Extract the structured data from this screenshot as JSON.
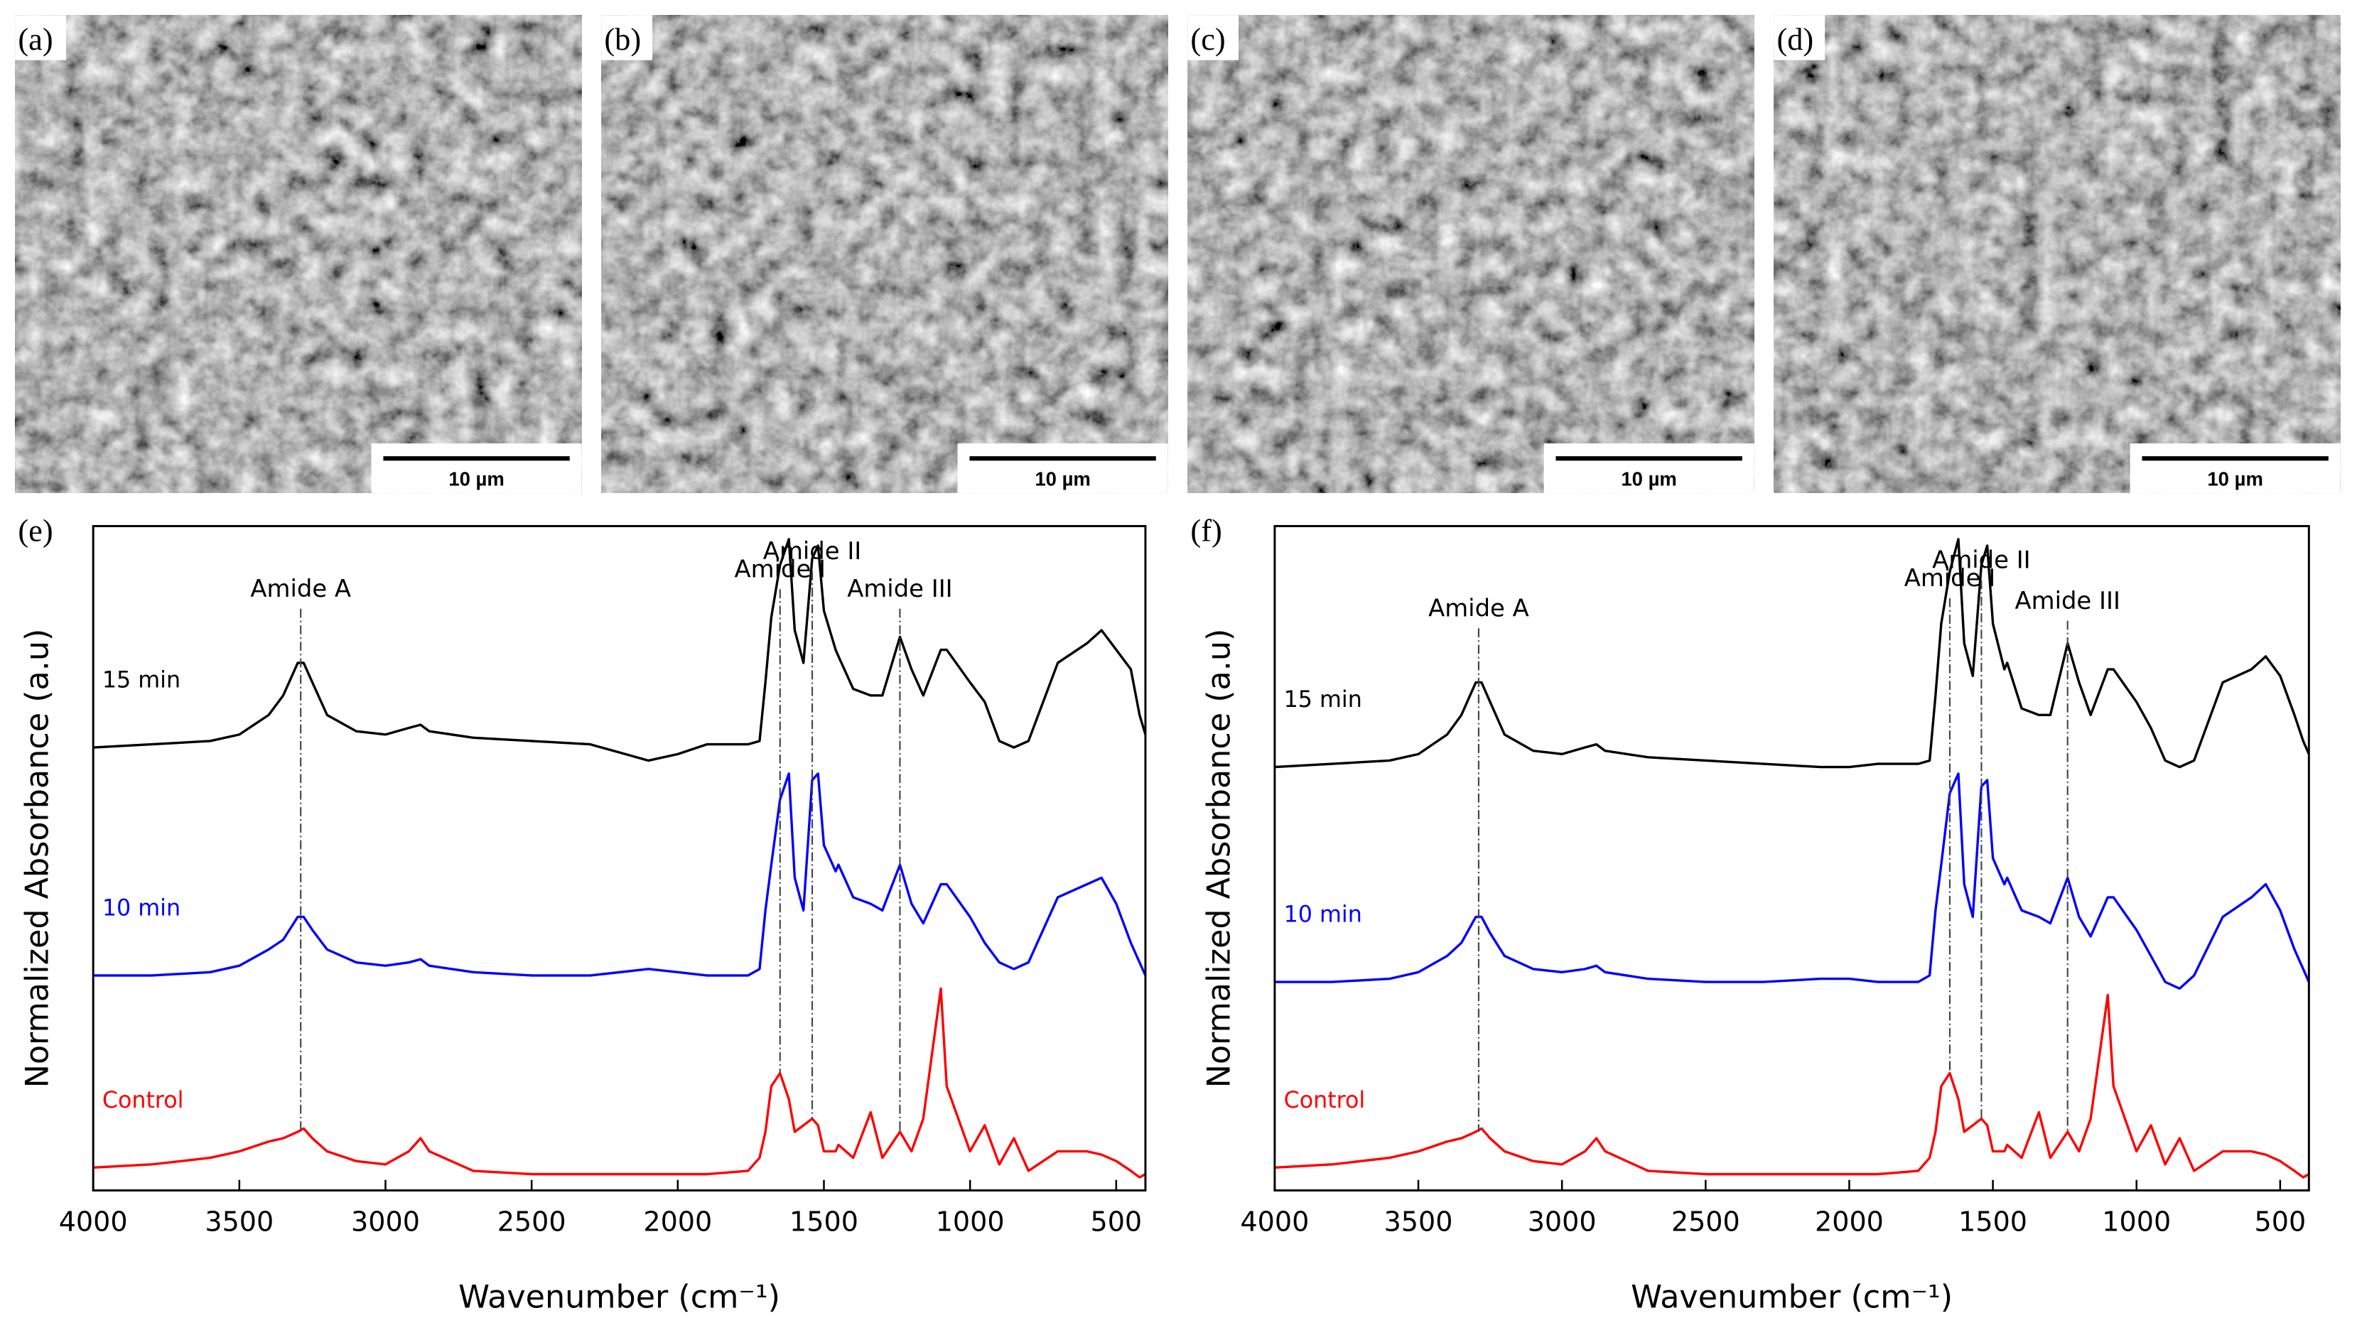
{
  "panels": [
    {
      "label": "(a)",
      "scale_bar": "10 µm"
    },
    {
      "label": "(b)",
      "scale_bar": "10 µm"
    },
    {
      "label": "(c)",
      "scale_bar": "10 µm"
    },
    {
      "label": "(d)",
      "scale_bar": "10 µm"
    }
  ],
  "chart_data": [
    {
      "type": "line",
      "panel_label": "(e)",
      "xlabel": "Wavenumber (cm⁻¹)",
      "ylabel": "Normalized Absorbance (a.u)",
      "xlim": [
        4000,
        400
      ],
      "xticks": [
        4000,
        3500,
        3000,
        2500,
        2000,
        1500,
        1000,
        500
      ],
      "ylim": [
        0,
        10.2
      ],
      "annotations": [
        {
          "text": "Amide A",
          "x": 3290
        },
        {
          "text": "Amide I",
          "x": 1650
        },
        {
          "text": "Amide II",
          "x": 1540
        },
        {
          "text": "Amide III",
          "x": 1240
        }
      ],
      "x": [
        4000,
        3800,
        3600,
        3500,
        3400,
        3350,
        3300,
        3280,
        3250,
        3200,
        3100,
        3000,
        2920,
        2880,
        2850,
        2700,
        2500,
        2300,
        2100,
        2000,
        1900,
        1760,
        1720,
        1700,
        1680,
        1650,
        1620,
        1600,
        1570,
        1540,
        1520,
        1500,
        1460,
        1450,
        1400,
        1340,
        1300,
        1240,
        1200,
        1160,
        1100,
        1080,
        1000,
        950,
        900,
        850,
        800,
        700,
        600,
        550,
        500,
        450,
        420,
        400
      ],
      "series": [
        {
          "name": "15 min",
          "color": "#000000",
          "values": [
            6.8,
            6.85,
            6.9,
            7.0,
            7.3,
            7.6,
            8.1,
            8.1,
            7.8,
            7.3,
            7.05,
            7.0,
            7.1,
            7.15,
            7.05,
            6.95,
            6.9,
            6.85,
            6.6,
            6.7,
            6.85,
            6.85,
            6.9,
            7.8,
            8.8,
            9.6,
            10.0,
            8.6,
            8.1,
            9.7,
            9.9,
            8.9,
            8.3,
            8.2,
            7.7,
            7.6,
            7.6,
            8.5,
            8.0,
            7.6,
            8.3,
            8.3,
            7.8,
            7.5,
            6.9,
            6.8,
            6.9,
            8.1,
            8.4,
            8.6,
            8.3,
            8.0,
            7.3,
            7.0
          ]
        },
        {
          "name": "10 min",
          "color": "#0000ff",
          "values": [
            3.3,
            3.3,
            3.35,
            3.45,
            3.7,
            3.85,
            4.2,
            4.2,
            4.0,
            3.7,
            3.5,
            3.45,
            3.5,
            3.55,
            3.45,
            3.35,
            3.3,
            3.3,
            3.4,
            3.35,
            3.3,
            3.3,
            3.4,
            4.3,
            5.0,
            6.0,
            6.4,
            4.8,
            4.3,
            6.3,
            6.4,
            5.3,
            4.9,
            5.0,
            4.5,
            4.4,
            4.3,
            5.0,
            4.4,
            4.1,
            4.7,
            4.7,
            4.2,
            3.8,
            3.5,
            3.4,
            3.5,
            4.5,
            4.7,
            4.8,
            4.4,
            3.8,
            3.5,
            3.3
          ]
        },
        {
          "name": "Control",
          "color": "#ff0000",
          "values": [
            0.35,
            0.4,
            0.5,
            0.6,
            0.75,
            0.8,
            0.9,
            0.95,
            0.8,
            0.6,
            0.45,
            0.4,
            0.6,
            0.8,
            0.6,
            0.3,
            0.25,
            0.25,
            0.25,
            0.25,
            0.25,
            0.3,
            0.5,
            0.9,
            1.6,
            1.8,
            1.4,
            0.9,
            1.0,
            1.1,
            1.0,
            0.6,
            0.6,
            0.7,
            0.5,
            1.2,
            0.5,
            0.9,
            0.6,
            1.1,
            3.1,
            1.6,
            0.6,
            1.0,
            0.4,
            0.8,
            0.3,
            0.6,
            0.6,
            0.55,
            0.45,
            0.3,
            0.2,
            0.25
          ]
        }
      ]
    },
    {
      "type": "line",
      "panel_label": "(f)",
      "xlabel": "Wavenumber (cm⁻¹)",
      "ylabel": "Normalized Absorbance (a.u)",
      "xlim": [
        4000,
        400
      ],
      "xticks": [
        4000,
        3500,
        3000,
        2500,
        2000,
        1500,
        1000,
        500
      ],
      "ylim": [
        0,
        10.2
      ],
      "annotations": [
        {
          "text": "Amide A",
          "x": 3290
        },
        {
          "text": "Amide I",
          "x": 1650
        },
        {
          "text": "Amide II",
          "x": 1540
        },
        {
          "text": "Amide III",
          "x": 1240
        }
      ],
      "x": [
        4000,
        3800,
        3600,
        3500,
        3400,
        3350,
        3300,
        3280,
        3250,
        3200,
        3100,
        3000,
        2920,
        2880,
        2850,
        2700,
        2500,
        2300,
        2100,
        2000,
        1900,
        1760,
        1720,
        1700,
        1680,
        1650,
        1620,
        1600,
        1570,
        1540,
        1520,
        1500,
        1460,
        1450,
        1400,
        1340,
        1300,
        1240,
        1200,
        1160,
        1100,
        1080,
        1000,
        950,
        900,
        850,
        800,
        700,
        600,
        550,
        500,
        450,
        420,
        400
      ],
      "series": [
        {
          "name": "15 min",
          "color": "#000000",
          "values": [
            6.5,
            6.55,
            6.6,
            6.7,
            7.0,
            7.3,
            7.8,
            7.8,
            7.5,
            7.0,
            6.75,
            6.7,
            6.8,
            6.85,
            6.75,
            6.65,
            6.6,
            6.55,
            6.5,
            6.5,
            6.55,
            6.55,
            6.6,
            7.6,
            8.7,
            9.5,
            10.0,
            8.4,
            7.9,
            9.6,
            9.9,
            8.7,
            8.0,
            8.1,
            7.4,
            7.3,
            7.3,
            8.4,
            7.8,
            7.3,
            8.0,
            8.0,
            7.5,
            7.1,
            6.6,
            6.5,
            6.6,
            7.8,
            8.0,
            8.2,
            7.9,
            7.3,
            6.9,
            6.7
          ]
        },
        {
          "name": "10 min",
          "color": "#0000ff",
          "values": [
            3.2,
            3.2,
            3.25,
            3.35,
            3.6,
            3.8,
            4.2,
            4.2,
            3.95,
            3.6,
            3.4,
            3.35,
            3.4,
            3.45,
            3.35,
            3.25,
            3.2,
            3.2,
            3.25,
            3.25,
            3.2,
            3.2,
            3.3,
            4.3,
            5.0,
            6.1,
            6.4,
            4.7,
            4.2,
            6.2,
            6.3,
            5.1,
            4.7,
            4.8,
            4.3,
            4.2,
            4.1,
            4.8,
            4.2,
            3.9,
            4.5,
            4.5,
            4.0,
            3.6,
            3.2,
            3.1,
            3.3,
            4.2,
            4.5,
            4.7,
            4.3,
            3.7,
            3.4,
            3.2
          ]
        },
        {
          "name": "Control",
          "color": "#ff0000",
          "values": [
            0.35,
            0.4,
            0.5,
            0.6,
            0.75,
            0.8,
            0.9,
            0.95,
            0.8,
            0.6,
            0.45,
            0.4,
            0.6,
            0.8,
            0.6,
            0.3,
            0.25,
            0.25,
            0.25,
            0.25,
            0.25,
            0.3,
            0.5,
            0.9,
            1.6,
            1.8,
            1.4,
            0.9,
            1.0,
            1.1,
            1.0,
            0.6,
            0.6,
            0.7,
            0.5,
            1.2,
            0.5,
            0.9,
            0.6,
            1.1,
            3.0,
            1.6,
            0.6,
            1.0,
            0.4,
            0.8,
            0.3,
            0.6,
            0.6,
            0.55,
            0.45,
            0.3,
            0.2,
            0.25
          ]
        }
      ]
    }
  ]
}
